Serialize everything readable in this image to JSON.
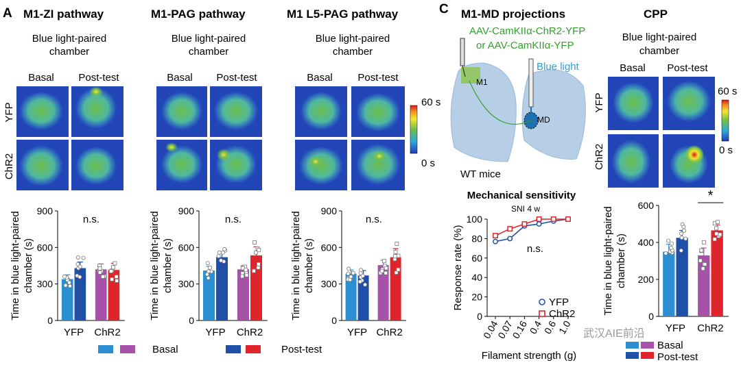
{
  "panels": [
    {
      "letter": "A",
      "title": "M1-ZI pathway",
      "subtitle": [
        "Blue light-paired",
        "chamber"
      ]
    },
    {
      "letter": "",
      "title": "M1-PAG pathway",
      "subtitle": [
        "Blue light-paired",
        "chamber"
      ]
    },
    {
      "letter": "",
      "title": "M1 L5-PAG pathway",
      "subtitle": [
        "Blue light-paired",
        "chamber"
      ]
    },
    {
      "letter": "C",
      "title": "M1-MD projections",
      "subtitle": []
    },
    {
      "letter": "",
      "title": "CPP",
      "subtitle": [
        "Blue light-paired",
        "chamber"
      ]
    }
  ],
  "heatmap_labels": {
    "col1": "Basal",
    "col2": "Post-test",
    "row1": "YFP",
    "row2": "ChR2"
  },
  "colorbar": {
    "max": "60 s",
    "min": "0 s"
  },
  "schematic": {
    "virus_line1": "AAV-CamKIIα-ChR2-YFP",
    "virus_line2": "or AAV-CamKIIα-YFP",
    "light": "Blue light",
    "m1": "M1",
    "md": "MD",
    "mice": "WT mice"
  },
  "legend_a": {
    "basal": "Basal",
    "post": "Post-test"
  },
  "legend_c": {
    "basal": "Basal",
    "post": "Post-test"
  },
  "colors": {
    "yfp_basal": "#2b8fd1",
    "yfp_post": "#1f4fa6",
    "chr2_basal": "#a552a8",
    "chr2_post": "#e0242b"
  },
  "watermark": "武汉AIE前沿",
  "chart_data": [
    {
      "type": "bar",
      "name": "M1-ZI pathway",
      "categories": [
        "YFP",
        "ChR2"
      ],
      "series": [
        {
          "name": "Basal",
          "values": [
            340,
            420
          ]
        },
        {
          "name": "Post-test",
          "values": [
            430,
            415
          ]
        }
      ],
      "error": [
        [
          35,
          45
        ],
        [
          50,
          55
        ]
      ],
      "ylabel": "Time in blue light-paired chamber (s)",
      "yticks": [
        0,
        300,
        600,
        900
      ],
      "ylim": [
        0,
        900
      ],
      "annotation": "n.s."
    },
    {
      "type": "bar",
      "name": "M1-PAG pathway",
      "categories": [
        "YFP",
        "ChR2"
      ],
      "series": [
        {
          "name": "Basal",
          "values": [
            410,
            420
          ]
        },
        {
          "name": "Post-test",
          "values": [
            520,
            535
          ]
        }
      ],
      "error": [
        [
          35,
          30
        ],
        [
          40,
          70
        ]
      ],
      "ylabel": "Time in blue light-paired chamber (s)",
      "yticks": [
        0,
        300,
        600,
        900
      ],
      "ylim": [
        0,
        900
      ],
      "annotation": "n.s."
    },
    {
      "type": "bar",
      "name": "M1 L5-PAG pathway",
      "categories": [
        "YFP",
        "ChR2"
      ],
      "series": [
        {
          "name": "Basal",
          "values": [
            385,
            455
          ]
        },
        {
          "name": "Post-test",
          "values": [
            370,
            520
          ]
        }
      ],
      "error": [
        [
          30,
          40
        ],
        [
          40,
          70
        ]
      ],
      "ylabel": "Time in blue light-paired chamber (s)",
      "yticks": [
        0,
        300,
        600,
        900
      ],
      "ylim": [
        0,
        900
      ],
      "annotation": "n.s."
    },
    {
      "type": "line",
      "name": "Mechanical sensitivity",
      "title": "Mechanical sensitivity",
      "subtitle": "SNI 4 w",
      "x": [
        "0.04",
        "0.07",
        "0.16",
        "0.4",
        "0.6",
        "1.0"
      ],
      "series": [
        {
          "name": "YFP",
          "values": [
            77,
            80,
            93,
            95,
            98,
            100
          ]
        },
        {
          "name": "ChR2",
          "values": [
            83,
            90,
            95,
            100,
            100,
            100
          ]
        }
      ],
      "xlabel": "Filament strength (g)",
      "ylabel": "Response rate (%)",
      "yticks": [
        0,
        20,
        40,
        60,
        80,
        100
      ],
      "ylim": [
        0,
        100
      ],
      "annotation": "n.s."
    },
    {
      "type": "bar",
      "name": "CPP",
      "categories": [
        "YFP",
        "ChR2"
      ],
      "series": [
        {
          "name": "Basal",
          "values": [
            350,
            330
          ]
        },
        {
          "name": "Post-test",
          "values": [
            425,
            465
          ]
        }
      ],
      "error": [
        [
          40,
          40
        ],
        [
          40,
          30
        ]
      ],
      "ylabel": "Time in blue light-paired chamber (s)",
      "yticks": [
        0,
        200,
        400,
        600
      ],
      "ylim": [
        0,
        600
      ],
      "annotation": "*"
    }
  ]
}
